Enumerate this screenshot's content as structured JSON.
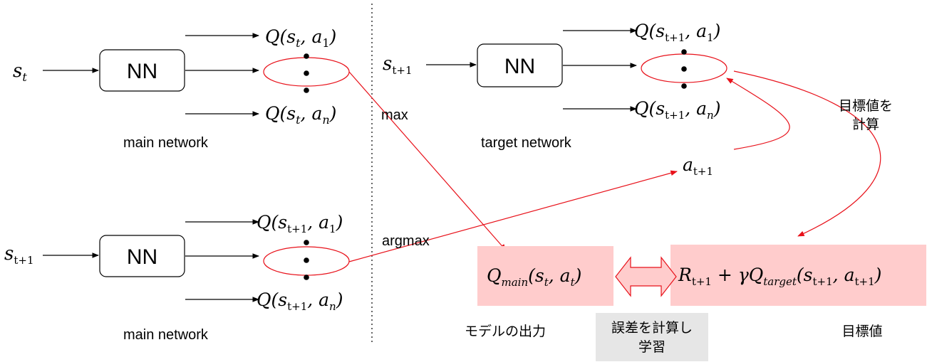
{
  "diagram": {
    "nn_label": "NN",
    "main_top": {
      "input": {
        "base": "s",
        "sub": "t"
      },
      "q_first": {
        "q": "Q(",
        "s": "s",
        "s_sub": "t",
        "mid": ", ",
        "a": "a",
        "a_sub": "1",
        "close": ")"
      },
      "q_last": {
        "q": "Q(",
        "s": "s",
        "s_sub": "t",
        "mid": ", ",
        "a": "a",
        "a_sub": "n",
        "close": ")"
      },
      "caption": "main network"
    },
    "target": {
      "input": {
        "base": "s",
        "sub": "t+1"
      },
      "q_first": {
        "q": "Q(",
        "s": "s",
        "s_sub": "t+1",
        "mid": ", ",
        "a": "a",
        "a_sub": "1",
        "close": ")"
      },
      "q_last": {
        "q": "Q(",
        "s": "s",
        "s_sub": "t+1",
        "mid": ", ",
        "a": "a",
        "a_sub": "n",
        "close": ")"
      },
      "caption": "target network"
    },
    "main_bottom": {
      "input": {
        "base": "s",
        "sub": "t+1"
      },
      "q_first": {
        "q": "Q(",
        "s": "s",
        "s_sub": "t+1",
        "mid": ", ",
        "a": "a",
        "a_sub": "1",
        "close": ")"
      },
      "q_last": {
        "q": "Q(",
        "s": "s",
        "s_sub": "t+1",
        "mid": ", ",
        "a": "a",
        "a_sub": "n",
        "close": ")"
      },
      "caption": "main network"
    },
    "labels": {
      "max": "max",
      "argmax": "argmax",
      "compute_target_line1": "目標値を",
      "compute_target_line2": "計算",
      "model_output": "モデルの出力",
      "error_line1": "誤差を計算し",
      "error_line2": "学習",
      "target_value": "目標値"
    },
    "action": {
      "base": "a",
      "sub": "t+1"
    },
    "q_main": {
      "q": "Q",
      "q_sub": "main",
      "open": "(",
      "s": "s",
      "s_sub": "t",
      "mid": ", ",
      "a": "a",
      "a_sub": "t",
      "close": ")"
    },
    "target_expr": {
      "r": "R",
      "r_sub": "t+1",
      "plus": " + ",
      "gamma": "γQ",
      "q_sub": "target",
      "open": "(",
      "s": "s",
      "s_sub": "t+1",
      "mid": ", ",
      "a": "a",
      "a_sub": "t+1",
      "close": ")"
    },
    "colors": {
      "red": "#e8111a",
      "pink_box": "#ffcccc",
      "gray_box": "#e6e6e6",
      "black": "#000000"
    }
  }
}
